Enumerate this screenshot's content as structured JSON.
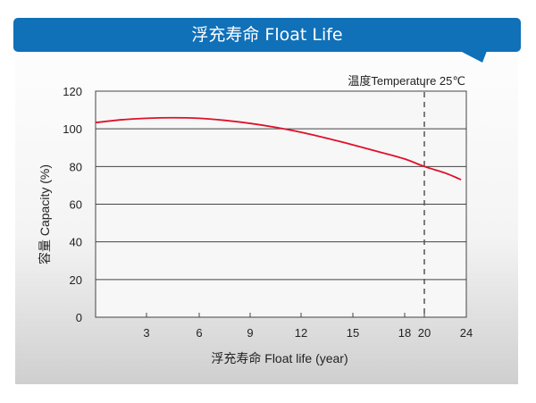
{
  "header": {
    "title": "浮充寿命 Float Life",
    "color": "#1070b8"
  },
  "chart_data": {
    "type": "line",
    "title": "",
    "annotation": "温度Temperature 25℃",
    "xlabel": "浮充寿命  Float life (year)",
    "ylabel": "容量  Capacity (%)",
    "xticks": [
      3,
      6,
      9,
      12,
      15,
      18,
      20,
      24
    ],
    "yticks": [
      0,
      20,
      40,
      60,
      80,
      100,
      120
    ],
    "ylim": [
      0,
      120
    ],
    "xlim": [
      0,
      24
    ],
    "grid": "horizontal",
    "reference_line": {
      "x": 20,
      "style": "dashed"
    },
    "series": [
      {
        "color": "#e0102a",
        "x": [
          0,
          1.5,
          3,
          4.5,
          6,
          7.5,
          9,
          10.5,
          12,
          13.5,
          15,
          16.5,
          18,
          20,
          22,
          23.5
        ],
        "y": [
          103.3,
          104.8,
          105.6,
          105.9,
          105.6,
          104.5,
          102.9,
          100.8,
          98.2,
          95.0,
          91.5,
          87.8,
          84.0,
          80,
          76.5,
          73
        ]
      }
    ]
  }
}
